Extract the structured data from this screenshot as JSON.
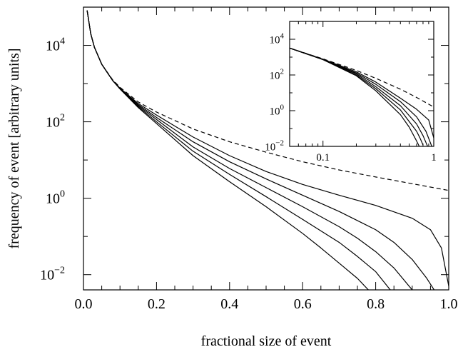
{
  "chart_data": [
    {
      "type": "line",
      "role": "main",
      "xlabel": "fractional size of event",
      "ylabel": "frequency of event  [arbitrary units]",
      "x_scale": "linear",
      "y_scale": "log",
      "xlim": [
        0.0,
        1.0
      ],
      "ylim": [
        0.004,
        100000
      ],
      "x_ticks": [
        {
          "value": 0.0,
          "label": "0.0"
        },
        {
          "value": 0.2,
          "label": "0.2"
        },
        {
          "value": 0.4,
          "label": "0.4"
        },
        {
          "value": 0.6,
          "label": "0.6"
        },
        {
          "value": 0.8,
          "label": "0.8"
        },
        {
          "value": 1.0,
          "label": "1.0"
        }
      ],
      "y_ticks": [
        {
          "value": 0.01,
          "base": "10",
          "exp": "−2"
        },
        {
          "value": 1,
          "base": "10",
          "exp": "0"
        },
        {
          "value": 100,
          "base": "10",
          "exp": "2"
        },
        {
          "value": 10000,
          "base": "10",
          "exp": "4"
        }
      ],
      "grid": false,
      "series": [
        {
          "style": "dashed",
          "x": [
            0.01,
            0.02,
            0.03,
            0.05,
            0.08,
            0.1,
            0.15,
            0.2,
            0.3,
            0.4,
            0.5,
            0.6,
            0.7,
            0.8,
            0.9,
            1.0
          ],
          "y": [
            82000,
            20000,
            8900,
            3200,
            1250,
            800,
            330,
            180,
            65,
            30,
            16,
            9,
            5.5,
            3.6,
            2.4,
            1.6
          ]
        },
        {
          "style": "solid",
          "x": [
            0.01,
            0.02,
            0.03,
            0.05,
            0.08,
            0.1,
            0.15,
            0.2,
            0.3,
            0.4,
            0.5,
            0.6,
            0.7,
            0.8,
            0.9,
            0.95,
            0.98,
            1.0
          ],
          "y": [
            82000,
            20000,
            8900,
            3200,
            1200,
            760,
            300,
            150,
            40,
            13,
            5,
            2.3,
            1.2,
            0.65,
            0.3,
            0.15,
            0.05,
            0.005
          ]
        },
        {
          "style": "solid",
          "x": [
            0.01,
            0.02,
            0.03,
            0.05,
            0.08,
            0.1,
            0.15,
            0.2,
            0.3,
            0.4,
            0.5,
            0.6,
            0.7,
            0.8,
            0.85,
            0.9,
            0.94,
            0.96
          ],
          "y": [
            82000,
            20000,
            8900,
            3200,
            1200,
            750,
            280,
            130,
            30,
            9,
            3.2,
            1.2,
            0.45,
            0.15,
            0.07,
            0.025,
            0.008,
            0.004
          ]
        },
        {
          "style": "solid",
          "x": [
            0.01,
            0.02,
            0.03,
            0.05,
            0.08,
            0.1,
            0.15,
            0.2,
            0.3,
            0.4,
            0.5,
            0.6,
            0.7,
            0.75,
            0.8,
            0.85,
            0.9
          ],
          "y": [
            82000,
            20000,
            8900,
            3200,
            1200,
            740,
            265,
            115,
            22,
            6,
            1.9,
            0.6,
            0.18,
            0.09,
            0.04,
            0.015,
            0.004
          ]
        },
        {
          "style": "solid",
          "x": [
            0.01,
            0.02,
            0.03,
            0.05,
            0.08,
            0.1,
            0.15,
            0.2,
            0.3,
            0.4,
            0.5,
            0.6,
            0.7,
            0.75,
            0.8,
            0.84
          ],
          "y": [
            82000,
            20000,
            8900,
            3200,
            1200,
            730,
            250,
            100,
            17,
            4.2,
            1.1,
            0.28,
            0.07,
            0.03,
            0.012,
            0.004
          ]
        },
        {
          "style": "solid",
          "x": [
            0.01,
            0.02,
            0.03,
            0.05,
            0.08,
            0.1,
            0.15,
            0.2,
            0.3,
            0.4,
            0.5,
            0.6,
            0.65,
            0.7,
            0.75,
            0.78
          ],
          "y": [
            82000,
            20000,
            8900,
            3200,
            1200,
            720,
            235,
            90,
            13,
            2.7,
            0.6,
            0.12,
            0.05,
            0.02,
            0.008,
            0.004
          ]
        }
      ]
    },
    {
      "type": "line",
      "role": "inset",
      "x_scale": "log",
      "y_scale": "log",
      "xlim": [
        0.05,
        1.0
      ],
      "ylim": [
        0.01,
        100000
      ],
      "x_ticks": [
        {
          "value": 0.1,
          "label": "0.1"
        },
        {
          "value": 1.0,
          "label": "1"
        }
      ],
      "y_ticks": [
        {
          "value": 0.01,
          "base": "10",
          "exp": "−2"
        },
        {
          "value": 1,
          "base": "10",
          "exp": "0"
        },
        {
          "value": 100,
          "base": "10",
          "exp": "2"
        },
        {
          "value": 10000,
          "base": "10",
          "exp": "4"
        }
      ],
      "grid": false,
      "series": [
        {
          "style": "dashed",
          "x": [
            0.05,
            0.1,
            0.2,
            0.3,
            0.5,
            0.7,
            1.0
          ],
          "y": [
            3200,
            800,
            180,
            65,
            16,
            5.5,
            1.6
          ]
        },
        {
          "style": "solid",
          "x": [
            0.05,
            0.1,
            0.2,
            0.3,
            0.5,
            0.7,
            0.9,
            1.0
          ],
          "y": [
            3200,
            760,
            150,
            40,
            5,
            1.2,
            0.3,
            0.03
          ]
        },
        {
          "style": "solid",
          "x": [
            0.05,
            0.1,
            0.2,
            0.3,
            0.5,
            0.7,
            0.85,
            0.96
          ],
          "y": [
            3200,
            750,
            130,
            30,
            3.2,
            0.45,
            0.07,
            0.01
          ]
        },
        {
          "style": "solid",
          "x": [
            0.05,
            0.1,
            0.2,
            0.3,
            0.5,
            0.7,
            0.8,
            0.88
          ],
          "y": [
            3200,
            740,
            115,
            22,
            1.9,
            0.18,
            0.04,
            0.01
          ]
        },
        {
          "style": "solid",
          "x": [
            0.05,
            0.1,
            0.2,
            0.3,
            0.5,
            0.7,
            0.75,
            0.8
          ],
          "y": [
            3200,
            730,
            100,
            17,
            1.1,
            0.07,
            0.03,
            0.012
          ]
        },
        {
          "style": "solid",
          "x": [
            0.05,
            0.1,
            0.2,
            0.3,
            0.5,
            0.6,
            0.7,
            0.74
          ],
          "y": [
            3200,
            720,
            90,
            13,
            0.6,
            0.12,
            0.02,
            0.01
          ]
        }
      ]
    }
  ]
}
